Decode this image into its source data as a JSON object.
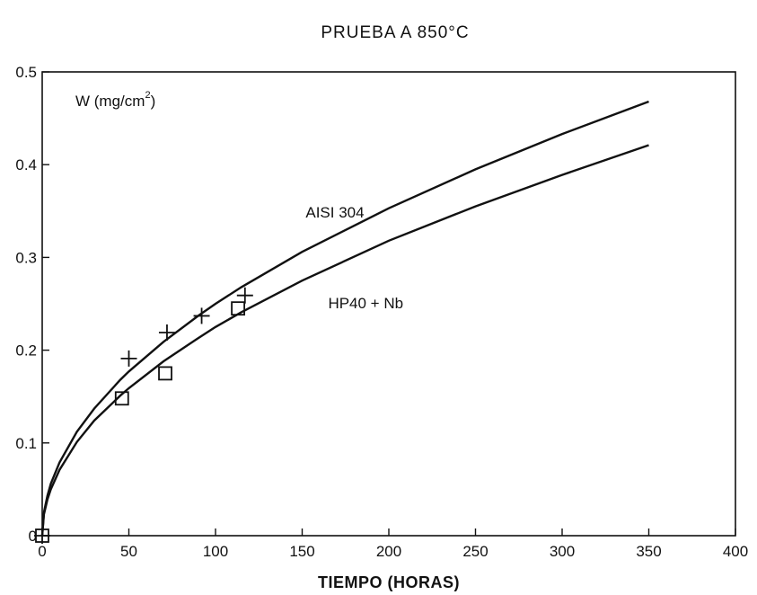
{
  "chart_data": {
    "type": "line",
    "title": "PRUEBA A 850°C",
    "xlabel": "TIEMPO (HORAS)",
    "ylabel": "W (mg/cm²)",
    "ylabel_base": "W (mg/cm",
    "ylabel_sup": "2",
    "ylabel_end": ")",
    "xlim": [
      0,
      400
    ],
    "ylim": [
      0,
      0.5
    ],
    "xticks": [
      0,
      50,
      100,
      150,
      200,
      250,
      300,
      350,
      400
    ],
    "xtick_labels": [
      "0",
      "50",
      "100",
      "150",
      "200",
      "250",
      "300",
      "350",
      "400"
    ],
    "yticks": [
      0,
      0.1,
      0.2,
      0.3,
      0.4,
      0.5
    ],
    "ytick_labels": [
      "0",
      "0.1",
      "0.2",
      "0.3",
      "0.4",
      "0.5"
    ],
    "grid": false,
    "legend": "none",
    "series": [
      {
        "name": "AISI 304",
        "marker": "plus",
        "curve": {
          "x": [
            0,
            1,
            3,
            5,
            10,
            20,
            30,
            45,
            50,
            70,
            90,
            100,
            115,
            150,
            200,
            250,
            300,
            350
          ],
          "y": [
            0,
            0.025,
            0.043,
            0.056,
            0.079,
            0.112,
            0.137,
            0.168,
            0.177,
            0.209,
            0.237,
            0.25,
            0.268,
            0.306,
            0.353,
            0.395,
            0.433,
            0.468
          ]
        },
        "points": {
          "x": [
            0,
            50,
            72,
            92,
            117
          ],
          "y": [
            0,
            0.191,
            0.219,
            0.237,
            0.259
          ]
        }
      },
      {
        "name": "HP40 + Nb",
        "marker": "square",
        "curve": {
          "x": [
            0,
            1,
            3,
            5,
            10,
            20,
            30,
            45,
            50,
            70,
            90,
            100,
            115,
            150,
            200,
            250,
            300,
            350
          ],
          "y": [
            0,
            0.023,
            0.039,
            0.05,
            0.071,
            0.101,
            0.124,
            0.151,
            0.159,
            0.188,
            0.213,
            0.225,
            0.241,
            0.275,
            0.318,
            0.355,
            0.389,
            0.421
          ]
        },
        "points": {
          "x": [
            0,
            46,
            71,
            113
          ],
          "y": [
            0,
            0.148,
            0.175,
            0.245
          ]
        }
      }
    ],
    "annotations": [
      {
        "text": "AISI 304",
        "x": 152,
        "y": 0.343
      },
      {
        "text": "HP40 + Nb",
        "x": 165,
        "y": 0.245
      }
    ]
  }
}
